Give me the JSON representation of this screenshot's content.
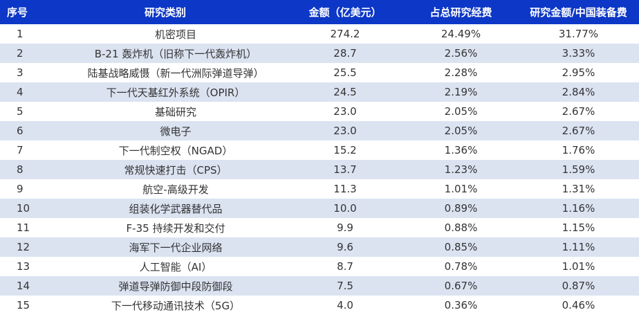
{
  "table": {
    "headers": [
      "序号",
      "研究类别",
      "金额（亿美元）",
      "占总研究经费",
      "研究金额/中国装备费"
    ],
    "rows": [
      {
        "index": "1",
        "category": "机密项目",
        "amount": "274.2",
        "share": "24.49%",
        "ratio": "31.77%"
      },
      {
        "index": "2",
        "category": "B-21 轰炸机（旧称下一代轰炸机）",
        "amount": "28.7",
        "share": "2.56%",
        "ratio": "3.33%"
      },
      {
        "index": "3",
        "category": "陆基战略威慑（新一代洲际弹道导弹）",
        "amount": "25.5",
        "share": "2.28%",
        "ratio": "2.95%"
      },
      {
        "index": "4",
        "category": "下一代天基红外系统（OPIR）",
        "amount": "24.5",
        "share": "2.19%",
        "ratio": "2.84%"
      },
      {
        "index": "5",
        "category": "基础研究",
        "amount": "23.0",
        "share": "2.05%",
        "ratio": "2.67%"
      },
      {
        "index": "6",
        "category": "微电子",
        "amount": "23.0",
        "share": "2.05%",
        "ratio": "2.67%"
      },
      {
        "index": "7",
        "category": "下一代制空权（NGAD）",
        "amount": "15.2",
        "share": "1.36%",
        "ratio": "1.76%"
      },
      {
        "index": "8",
        "category": "常规快速打击（CPS）",
        "amount": "13.7",
        "share": "1.23%",
        "ratio": "1.59%"
      },
      {
        "index": "9",
        "category": "航空-高级开发",
        "amount": "11.3",
        "share": "1.01%",
        "ratio": "1.31%"
      },
      {
        "index": "10",
        "category": "组装化学武器替代品",
        "amount": "10.0",
        "share": "0.89%",
        "ratio": "1.16%"
      },
      {
        "index": "11",
        "category": "F-35 持续开发和交付",
        "amount": "9.9",
        "share": "0.88%",
        "ratio": "1.15%"
      },
      {
        "index": "12",
        "category": "海军下一代企业网络",
        "amount": "9.6",
        "share": "0.85%",
        "ratio": "1.11%"
      },
      {
        "index": "13",
        "category": "人工智能（AI）",
        "amount": "8.7",
        "share": "0.78%",
        "ratio": "1.01%"
      },
      {
        "index": "14",
        "category": "弹道导弹防御中段防御段",
        "amount": "7.5",
        "share": "0.67%",
        "ratio": "0.87%"
      },
      {
        "index": "15",
        "category": "下一代移动通讯技术（5G）",
        "amount": "4.0",
        "share": "0.36%",
        "ratio": "0.46%"
      }
    ]
  },
  "colors": {
    "header_bg": "#0c37c7",
    "header_text": "#ffffff",
    "stripe_row": "#dbe3f1",
    "plain_row": "#ffffff",
    "cell_text": "#333333"
  }
}
